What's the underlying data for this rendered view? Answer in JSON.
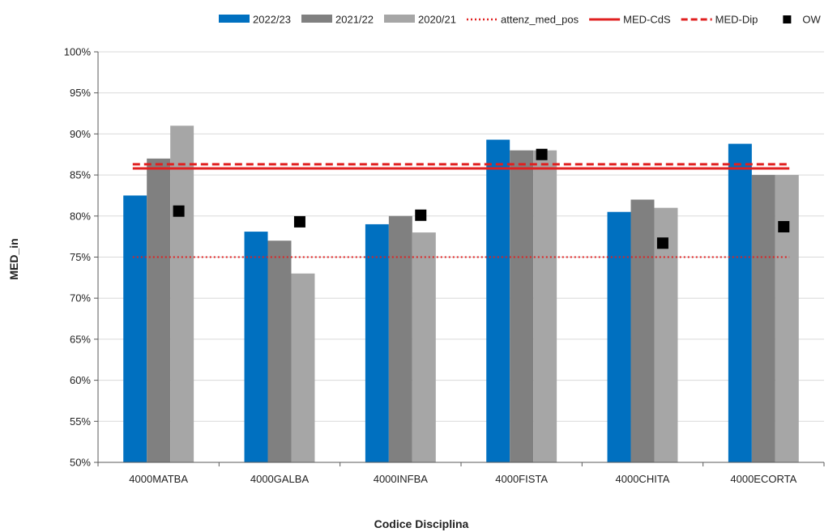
{
  "chart_data": {
    "type": "bar",
    "xlabel": "Codice Disciplina",
    "ylabel": "MED_in",
    "ylim": [
      0.5,
      1.0
    ],
    "ytick_step": 0.05,
    "ytick_format": "percent",
    "grid": true,
    "legend_position": "top",
    "categories": [
      "4000MATBA",
      "4000GALBA",
      "4000INFBA",
      "4000FISTA",
      "4000CHITA",
      "4000ECORTA"
    ],
    "series": [
      {
        "name": "2022/23",
        "kind": "bar",
        "color": "#0070C0",
        "values": [
          0.825,
          0.781,
          0.79,
          0.893,
          0.805,
          0.888
        ]
      },
      {
        "name": "2021/22",
        "kind": "bar",
        "color": "#808080",
        "values": [
          0.87,
          0.77,
          0.8,
          0.88,
          0.82,
          0.85
        ]
      },
      {
        "name": "2020/21",
        "kind": "bar",
        "color": "#A6A6A6",
        "values": [
          0.91,
          0.73,
          0.78,
          0.88,
          0.81,
          0.85
        ]
      },
      {
        "name": "attenz_med_pos",
        "kind": "hline",
        "style": "dotted",
        "color": "#E02020",
        "value": 0.75
      },
      {
        "name": "MED-CdS",
        "kind": "hline",
        "style": "solid",
        "color": "#E02020",
        "value": 0.858
      },
      {
        "name": "MED-Dip",
        "kind": "hline",
        "style": "dashed",
        "color": "#E02020",
        "value": 0.863
      },
      {
        "name": "OW",
        "kind": "marker",
        "color": "#000000",
        "values": [
          0.806,
          0.793,
          0.801,
          0.875,
          0.767,
          0.787
        ]
      }
    ]
  }
}
